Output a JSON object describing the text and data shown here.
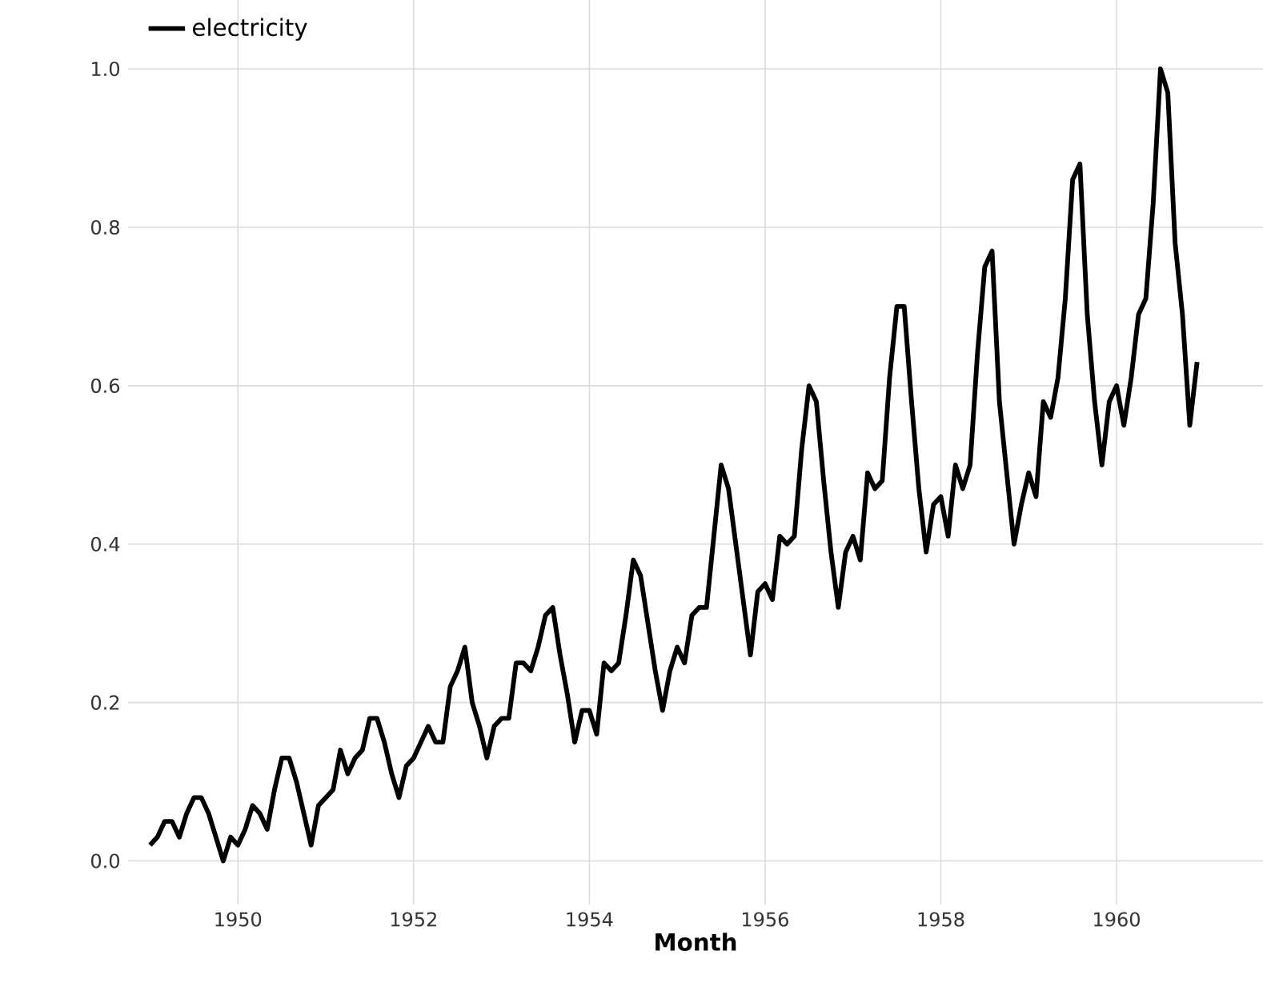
{
  "chart_data": {
    "type": "line",
    "xlabel": "Month",
    "x": [
      "1949-01",
      "1949-02",
      "1949-03",
      "1949-04",
      "1949-05",
      "1949-06",
      "1949-07",
      "1949-08",
      "1949-09",
      "1949-10",
      "1949-11",
      "1949-12",
      "1950-01",
      "1950-02",
      "1950-03",
      "1950-04",
      "1950-05",
      "1950-06",
      "1950-07",
      "1950-08",
      "1950-09",
      "1950-10",
      "1950-11",
      "1950-12",
      "1951-01",
      "1951-02",
      "1951-03",
      "1951-04",
      "1951-05",
      "1951-06",
      "1951-07",
      "1951-08",
      "1951-09",
      "1951-10",
      "1951-11",
      "1951-12",
      "1952-01",
      "1952-02",
      "1952-03",
      "1952-04",
      "1952-05",
      "1952-06",
      "1952-07",
      "1952-08",
      "1952-09",
      "1952-10",
      "1952-11",
      "1952-12",
      "1953-01",
      "1953-02",
      "1953-03",
      "1953-04",
      "1953-05",
      "1953-06",
      "1953-07",
      "1953-08",
      "1953-09",
      "1953-10",
      "1953-11",
      "1953-12",
      "1954-01",
      "1954-02",
      "1954-03",
      "1954-04",
      "1954-05",
      "1954-06",
      "1954-07",
      "1954-08",
      "1954-09",
      "1954-10",
      "1954-11",
      "1954-12",
      "1955-01",
      "1955-02",
      "1955-03",
      "1955-04",
      "1955-05",
      "1955-06",
      "1955-07",
      "1955-08",
      "1955-09",
      "1955-10",
      "1955-11",
      "1955-12",
      "1956-01",
      "1956-02",
      "1956-03",
      "1956-04",
      "1956-05",
      "1956-06",
      "1956-07",
      "1956-08",
      "1956-09",
      "1956-10",
      "1956-11",
      "1956-12",
      "1957-01",
      "1957-02",
      "1957-03",
      "1957-04",
      "1957-05",
      "1957-06",
      "1957-07",
      "1957-08",
      "1957-09",
      "1957-10",
      "1957-11",
      "1957-12",
      "1958-01",
      "1958-02",
      "1958-03",
      "1958-04",
      "1958-05",
      "1958-06",
      "1958-07",
      "1958-08",
      "1958-09",
      "1958-10",
      "1958-11",
      "1958-12",
      "1959-01",
      "1959-02",
      "1959-03",
      "1959-04",
      "1959-05",
      "1959-06",
      "1959-07",
      "1959-08",
      "1959-09",
      "1959-10",
      "1959-11",
      "1959-12",
      "1960-01",
      "1960-02",
      "1960-03",
      "1960-04",
      "1960-05",
      "1960-06",
      "1960-07",
      "1960-08",
      "1960-09",
      "1960-10",
      "1960-11",
      "1960-12"
    ],
    "series": [
      {
        "name": "electricity",
        "color": "#000000",
        "values": [
          0.02,
          0.03,
          0.05,
          0.05,
          0.03,
          0.06,
          0.08,
          0.08,
          0.06,
          0.03,
          0.0,
          0.03,
          0.02,
          0.04,
          0.07,
          0.06,
          0.04,
          0.09,
          0.13,
          0.13,
          0.1,
          0.06,
          0.02,
          0.07,
          0.08,
          0.09,
          0.14,
          0.11,
          0.13,
          0.14,
          0.18,
          0.18,
          0.15,
          0.11,
          0.08,
          0.12,
          0.13,
          0.15,
          0.17,
          0.15,
          0.15,
          0.22,
          0.24,
          0.27,
          0.2,
          0.17,
          0.13,
          0.17,
          0.18,
          0.18,
          0.25,
          0.25,
          0.24,
          0.27,
          0.31,
          0.32,
          0.26,
          0.21,
          0.15,
          0.19,
          0.19,
          0.16,
          0.25,
          0.24,
          0.25,
          0.31,
          0.38,
          0.36,
          0.3,
          0.24,
          0.19,
          0.24,
          0.27,
          0.25,
          0.31,
          0.32,
          0.32,
          0.41,
          0.5,
          0.47,
          0.4,
          0.33,
          0.26,
          0.34,
          0.35,
          0.33,
          0.41,
          0.4,
          0.41,
          0.52,
          0.6,
          0.58,
          0.48,
          0.39,
          0.32,
          0.39,
          0.41,
          0.38,
          0.49,
          0.47,
          0.48,
          0.61,
          0.7,
          0.7,
          0.58,
          0.47,
          0.39,
          0.45,
          0.46,
          0.41,
          0.5,
          0.47,
          0.5,
          0.64,
          0.75,
          0.77,
          0.58,
          0.49,
          0.4,
          0.45,
          0.49,
          0.46,
          0.58,
          0.56,
          0.61,
          0.71,
          0.86,
          0.88,
          0.69,
          0.58,
          0.5,
          0.58,
          0.6,
          0.55,
          0.61,
          0.69,
          0.71,
          0.83,
          1.0,
          0.97,
          0.78,
          0.69,
          0.55,
          0.63
        ]
      }
    ],
    "xlim": [
      "1948-10",
      "1961-09"
    ],
    "ylim": [
      -0.055,
      1.087
    ],
    "xticks": [
      "1950",
      "1952",
      "1954",
      "1956",
      "1958",
      "1960"
    ],
    "yticks": [
      {
        "value": 0.0,
        "label": "0.0"
      },
      {
        "value": 0.2,
        "label": "0.2"
      },
      {
        "value": 0.4,
        "label": "0.4"
      },
      {
        "value": 0.6,
        "label": "0.6"
      },
      {
        "value": 0.8,
        "label": "0.8"
      },
      {
        "value": 1.0,
        "label": "1.0"
      }
    ],
    "grid": true,
    "legend": "top left",
    "line_style": "solid",
    "marker": "none"
  }
}
